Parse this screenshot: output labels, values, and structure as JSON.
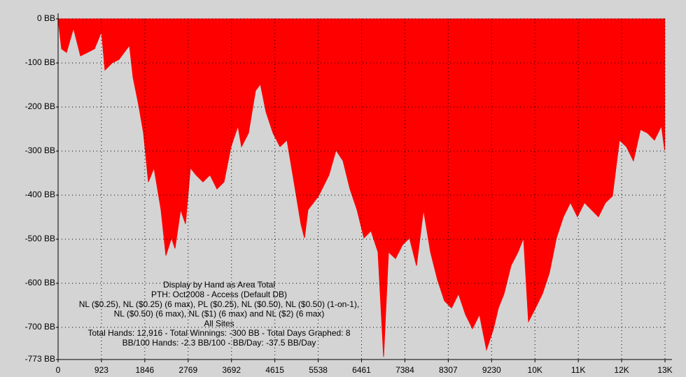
{
  "chart_data": {
    "type": "area",
    "color": "#ff0000",
    "grid": true,
    "x": [
      0,
      75,
      179,
      328,
      477,
      626,
      775,
      924,
      999,
      1148,
      1297,
      1520,
      1595,
      1714,
      1818,
      1923,
      2042,
      2191,
      2295,
      2414,
      2489,
      2608,
      2713,
      2817,
      2936,
      3085,
      3234,
      3383,
      3532,
      3681,
      3830,
      3905,
      4054,
      4203,
      4307,
      4426,
      4575,
      4724,
      4873,
      5022,
      5171,
      5246,
      5321,
      5544,
      5768,
      5917,
      6066,
      6215,
      6364,
      6513,
      6662,
      6811,
      6930,
      7035,
      7184,
      7333,
      7482,
      7631,
      7780,
      7929,
      8078,
      8227,
      8376,
      8525,
      8674,
      8823,
      8972,
      9121,
      9270,
      9375,
      9494,
      9643,
      9792,
      9911,
      10015,
      10164,
      10313,
      10462,
      10611,
      10760,
      10909,
      11058,
      11207,
      11356,
      11505,
      11654,
      11803,
      11952,
      12101,
      12250,
      12399,
      12548,
      12697,
      12846,
      12916
    ],
    "values": [
      0,
      -68,
      -76,
      -21,
      -84,
      -76,
      -68,
      -29,
      -116,
      -100,
      -92,
      -60,
      -132,
      -195,
      -259,
      -370,
      -338,
      -433,
      -537,
      -497,
      -521,
      -433,
      -465,
      -338,
      -354,
      -370,
      -354,
      -386,
      -370,
      -290,
      -243,
      -290,
      -259,
      -163,
      -148,
      -211,
      -259,
      -290,
      -275,
      -370,
      -465,
      -497,
      -433,
      -402,
      -354,
      -298,
      -322,
      -386,
      -433,
      -497,
      -481,
      -529,
      -767,
      -529,
      -544,
      -513,
      -497,
      -560,
      -433,
      -529,
      -592,
      -640,
      -656,
      -624,
      -671,
      -703,
      -671,
      -751,
      -703,
      -656,
      -624,
      -560,
      -529,
      -497,
      -687,
      -656,
      -624,
      -576,
      -497,
      -449,
      -417,
      -449,
      -417,
      -433,
      -449,
      -417,
      -402,
      -275,
      -290,
      -322,
      -251,
      -259,
      -275,
      -243,
      -298
    ],
    "xlim": [
      0,
      12922
    ],
    "ylim": [
      -773,
      0
    ],
    "xticks": [
      0,
      923,
      1846,
      2769,
      3692,
      4615,
      5538,
      6461,
      7384,
      8307,
      9230,
      {
        "value": 10153,
        "label": "10K"
      },
      {
        "value": 11076,
        "label": "11K"
      },
      {
        "value": 11999,
        "label": "12K"
      },
      {
        "value": 12922,
        "label": "13K"
      }
    ],
    "yticks": [
      {
        "value": 0,
        "label": "0 BB"
      },
      {
        "value": -100,
        "label": "-100 BB"
      },
      {
        "value": -200,
        "label": "-200 BB"
      },
      {
        "value": -300,
        "label": "-300 BB"
      },
      {
        "value": -400,
        "label": "-400 BB"
      },
      {
        "value": -500,
        "label": "-500 BB"
      },
      {
        "value": -600,
        "label": "-600 BB"
      },
      {
        "value": -700,
        "label": "-700 BB"
      },
      {
        "value": -773,
        "label": "-773 BB"
      }
    ],
    "annotations": [
      "Display by Hand as Area Total",
      "PTH: Oct2008 - Access (Default DB)",
      "NL ($0.25), NL ($0.25) (6 max), PL ($0.25), NL ($0.50), NL ($0.50) (1-on-1),",
      "NL ($0.50) (6 max), NL ($1) (6 max) and NL ($2) (6 max)",
      "All Sites",
      "Total Hands: 12,916 - Total Winnings: -300 BB - Total Days Graphed: 8",
      "BB/100 Hands: -2.3 BB/100 - BB/Day: -37.5 BB/Day"
    ]
  }
}
